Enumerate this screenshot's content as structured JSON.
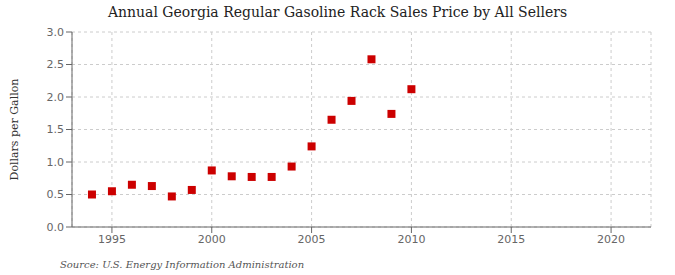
{
  "chart_data": {
    "type": "scatter",
    "title": "Annual Georgia Regular Gasoline Rack Sales Price by All Sellers",
    "ylabel": "Dollars per Gallon",
    "annotation": "Source: U.S. Energy Information Administration",
    "x": [
      1994,
      1995,
      1996,
      1997,
      1998,
      1999,
      2000,
      2001,
      2002,
      2003,
      2004,
      2005,
      2006,
      2007,
      2008,
      2009,
      2010
    ],
    "values": [
      0.5,
      0.55,
      0.65,
      0.63,
      0.47,
      0.57,
      0.87,
      0.78,
      0.77,
      0.77,
      0.93,
      1.24,
      1.65,
      1.94,
      2.58,
      1.74,
      2.12
    ],
    "color": "#cc0000",
    "marker": "square",
    "xlim": [
      1993,
      2022
    ],
    "ylim": [
      0.0,
      3.0
    ],
    "xticks": [
      1995,
      2000,
      2005,
      2010,
      2015,
      2020
    ],
    "yticks": [
      {
        "value": 0.0,
        "label": "0.0"
      },
      0.5,
      {
        "value": 1.0,
        "label": "1.0"
      },
      1.5,
      {
        "value": 2.0,
        "label": "2.0"
      },
      2.5,
      {
        "value": 3.0,
        "label": "3.0"
      }
    ],
    "grid": true
  }
}
